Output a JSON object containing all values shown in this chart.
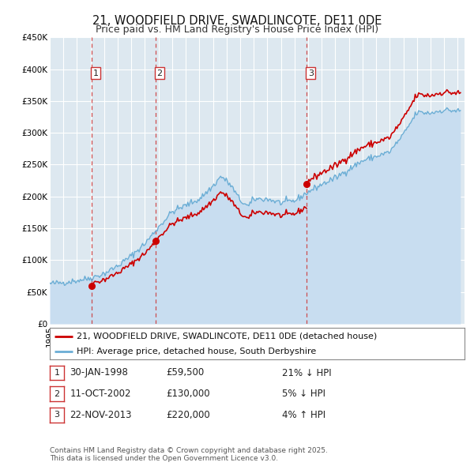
{
  "title": "21, WOODFIELD DRIVE, SWADLINCOTE, DE11 0DE",
  "subtitle": "Price paid vs. HM Land Registry's House Price Index (HPI)",
  "ylim": [
    0,
    450000
  ],
  "yticks": [
    0,
    50000,
    100000,
    150000,
    200000,
    250000,
    300000,
    350000,
    400000,
    450000
  ],
  "ytick_labels": [
    "£0",
    "£50K",
    "£100K",
    "£150K",
    "£200K",
    "£250K",
    "£300K",
    "£350K",
    "£400K",
    "£450K"
  ],
  "xlim_start": 1995.0,
  "xlim_end": 2025.5,
  "background_color": "#ffffff",
  "plot_bg_color": "#dde8f0",
  "grid_color": "#ffffff",
  "sale_color": "#cc0000",
  "hpi_color": "#6aadd5",
  "hpi_fill_color": "#c8ddf0",
  "transaction_line_color": "#cc3333",
  "sale_marker_color": "#cc0000",
  "transactions": [
    {
      "num": 1,
      "date_label": "30-JAN-1998",
      "date_x": 1998.08,
      "price": 59500
    },
    {
      "num": 2,
      "date_label": "11-OCT-2002",
      "date_x": 2002.78,
      "price": 130000
    },
    {
      "num": 3,
      "date_label": "22-NOV-2013",
      "date_x": 2013.9,
      "price": 220000
    }
  ],
  "legend_line1": "21, WOODFIELD DRIVE, SWADLINCOTE, DE11 0DE (detached house)",
  "legend_line2": "HPI: Average price, detached house, South Derbyshire",
  "table_rows": [
    {
      "num": "1",
      "date": "30-JAN-1998",
      "price": "£59,500",
      "pct": "21% ↓ HPI"
    },
    {
      "num": "2",
      "date": "11-OCT-2002",
      "price": "£130,000",
      "pct": "5% ↓ HPI"
    },
    {
      "num": "3",
      "date": "22-NOV-2013",
      "price": "£220,000",
      "pct": "4% ↑ HPI"
    }
  ],
  "footnote": "Contains HM Land Registry data © Crown copyright and database right 2025.\nThis data is licensed under the Open Government Licence v3.0.",
  "title_fontsize": 10.5,
  "subtitle_fontsize": 9,
  "tick_fontsize": 7.5,
  "legend_fontsize": 8,
  "table_fontsize": 8.5,
  "footnote_fontsize": 6.5
}
